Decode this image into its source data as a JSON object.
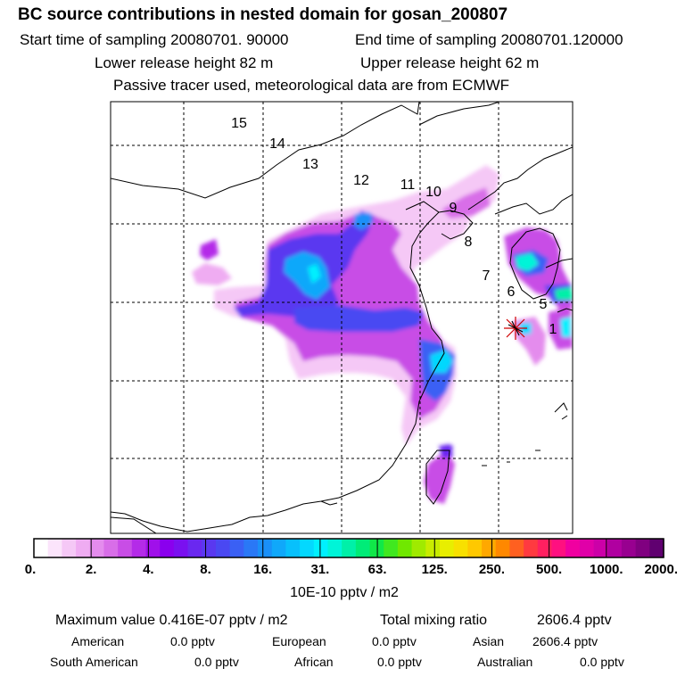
{
  "header": {
    "title": "BC  source contributions in nested domain for gosan_200807",
    "start_label": "Start time of sampling 20080701. 90000",
    "end_label": "End time of sampling 20080701.120000",
    "lower_label": "Lower release height   82 m",
    "upper_label": "Upper release height   62 m",
    "tracer_label": "Passive tracer used, meteorological data are from ECMWF"
  },
  "chart_data": {
    "type": "heatmap",
    "title": "BC  source contributions in nested domain for gosan_200807",
    "units_label": "10E-10 pptv / m2",
    "receptor": "gosan",
    "trajectory_labels": [
      "15",
      "14",
      "13",
      "12",
      "11",
      "10",
      "9",
      "8",
      "7",
      "6",
      "5",
      "1"
    ],
    "colorbar": {
      "tick_labels": [
        "0.",
        "2.",
        "4.",
        "8.",
        "16.",
        "31.",
        "63.",
        "125.",
        "250.",
        "500.",
        "1000.",
        "2000."
      ],
      "colors": [
        "#ffffff",
        "#fbe4fb",
        "#f5c8f6",
        "#efacf2",
        "#e48ced",
        "#d86ee8",
        "#c84de6",
        "#b42be8",
        "#a010ea",
        "#8a00ee",
        "#7a10f0",
        "#6a28f0",
        "#5a38f0",
        "#4a48f2",
        "#3a60f4",
        "#2a78f6",
        "#1a90f8",
        "#10a8fa",
        "#08c0fc",
        "#04d8fe",
        "#00f0fe",
        "#00f4d8",
        "#00f0a8",
        "#00ec78",
        "#10e848",
        "#40e820",
        "#70e800",
        "#a0ea00",
        "#c8ec00",
        "#e8ee00",
        "#f8e000",
        "#ffc800",
        "#ffa800",
        "#ff8800",
        "#ff6020",
        "#ff3a40",
        "#ff2060",
        "#ff1080",
        "#f000a0",
        "#e000a8",
        "#cc00a8",
        "#b000a0",
        "#980090",
        "#800080",
        "#600070"
      ]
    }
  },
  "stats": {
    "max_label": "Maximum value  0.416E-07 pptv / m2",
    "total_label": "Total mixing ratio",
    "total_value": "2606.4 pptv",
    "row1": [
      {
        "name": "American",
        "value": "0.0 pptv"
      },
      {
        "name": "European",
        "value": "0.0 pptv"
      },
      {
        "name": "Asian",
        "value": "2606.4 pptv"
      }
    ],
    "row2": [
      {
        "name": "South American",
        "value": "0.0 pptv"
      },
      {
        "name": "African",
        "value": "0.0 pptv"
      },
      {
        "name": "Australian",
        "value": "0.0 pptv"
      }
    ]
  }
}
